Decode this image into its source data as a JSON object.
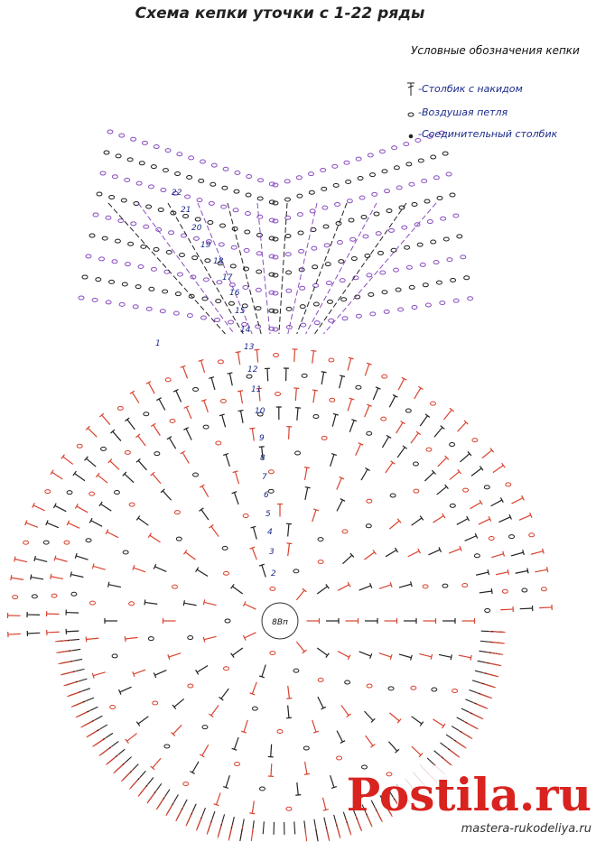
{
  "title": "Схема кепки уточки с 1-22 ряды",
  "legend": {
    "title": "Условные обозначения кепки",
    "items": [
      "-Столбик с накидом",
      "-Воздушая петля",
      "-Соединительный столбик"
    ]
  },
  "center_label": "8Вп",
  "row_labels": [
    "1",
    "2",
    "3",
    "4",
    "5",
    "6",
    "7",
    "8",
    "9",
    "10",
    "11",
    "12",
    "13",
    "14",
    "15",
    "16",
    "17",
    "18",
    "19",
    "20",
    "21",
    "22"
  ],
  "watermark": {
    "brand": "Postila.ru",
    "site": "mastera-rukodeliya.ru"
  }
}
